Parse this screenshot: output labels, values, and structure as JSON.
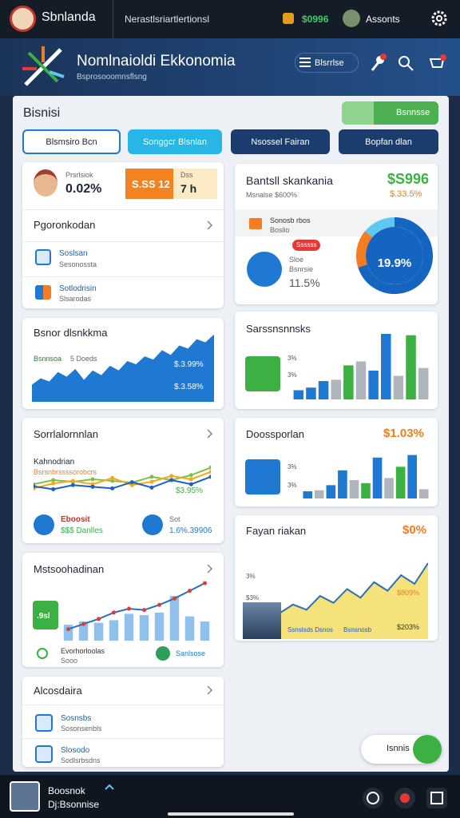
{
  "topbar": {
    "app_name": "Sbnlanda",
    "subtitle": "Nerastlsriartlertionsl",
    "balance": "$0996",
    "account": "Assonts"
  },
  "header": {
    "title": "Nomlnaioldi Ekkonomia",
    "subtitle": "Bsprosooomnsflsng",
    "search": "Blsrrlse"
  },
  "section": {
    "title": "Bisnisi",
    "button": "Bsnnsse"
  },
  "tabs": [
    "Blsmsiro Bcn",
    "Songgcr Blsnlan",
    "Nsossel Fairan",
    "Bopfan dlan"
  ],
  "profile_card": {
    "label": "Prsrlsiok",
    "value": "0.02%",
    "badge": "S.SS 12",
    "badge_label": "Dss",
    "badge_value": "7 h",
    "list_title": "Pgoronkodan",
    "items": [
      {
        "title": "Soslsan",
        "sub": "Sesonossta"
      },
      {
        "title": "Sotlodrisin",
        "sub": "Slsarodas"
      }
    ]
  },
  "area_card": {
    "title": "Bsnor dlsnkkma",
    "legend": "Bsnnsoa",
    "legend2": "5 Doeds",
    "label1": "$.3.99%",
    "label2": "$.3.58%",
    "chart": {
      "type": "area",
      "color": "#1f78d1",
      "ylim": [
        0,
        100
      ],
      "values": [
        22,
        30,
        26,
        38,
        32,
        42,
        28,
        40,
        34,
        46,
        40,
        52,
        48,
        58,
        54,
        66,
        60,
        72,
        68,
        80,
        76,
        86
      ]
    }
  },
  "line_card": {
    "title": "Sorrlalornnlan",
    "label": "Kahnodrian",
    "sublabel": "Bsrsnbrssssorobcrs",
    "value": "$3.95%",
    "left_title": "Eboosit",
    "left_value": "$$$ Danlles",
    "right_title": "Sot",
    "right_value": "1.6%.39906",
    "chart": {
      "type": "line",
      "ylim": [
        0,
        100
      ],
      "series": [
        {
          "color": "#7cc242",
          "values": [
            40,
            50,
            46,
            52,
            48,
            44,
            58,
            50,
            62,
            80
          ]
        },
        {
          "color": "#f5a623",
          "values": [
            30,
            42,
            48,
            40,
            55,
            38,
            46,
            60,
            52,
            70
          ]
        },
        {
          "color": "#1f5fbf",
          "values": [
            35,
            28,
            38,
            34,
            30,
            45,
            32,
            50,
            40,
            58
          ]
        }
      ]
    }
  },
  "barline_card": {
    "title": "Mstsoohadinan",
    "badge": ".9sl",
    "left_title": "Evorhorloolas",
    "left_sub": "Sooo",
    "right_title": "Sanlsose",
    "chart": {
      "type": "bar_line",
      "ylim": [
        0,
        100
      ],
      "bar_color": "#8fc1ec",
      "line_color": "#2c6fb7",
      "values": [
        25,
        30,
        28,
        32,
        42,
        40,
        44,
        70,
        38,
        30
      ],
      "line": [
        18,
        26,
        34,
        44,
        50,
        48,
        56,
        66,
        78,
        90
      ]
    }
  },
  "list_card": {
    "title": "Alcosdaira",
    "items": [
      {
        "title": "Sosnsbs",
        "sub": "Sosonsenbls"
      },
      {
        "title": "Slosodo",
        "sub": "Sodlsrbsdns"
      }
    ]
  },
  "stat_card": {
    "title": "Bantsll skankania",
    "value": "$S996",
    "sub": "Msnalse $600%",
    "change": "$.33.5%",
    "row_title": "Sonosb rbos",
    "row_sub": "Boslio",
    "pill": "Ssssss",
    "item_title": "Sloe",
    "item_sub": "Bsnrsie",
    "item_value": "11.5%",
    "donut_label": "19.9%",
    "chart": {
      "type": "donut",
      "segments": [
        {
          "value": 70,
          "color": "#1565c0"
        },
        {
          "value": 16,
          "color": "#f57c20"
        },
        {
          "value": 14,
          "color": "#5ec8f0"
        }
      ]
    }
  },
  "bars_card": {
    "title": "Sarssnsnnsks",
    "axis_labels": [
      "3%",
      "3%"
    ],
    "chart": {
      "type": "bar",
      "ylim": [
        0,
        100
      ],
      "values": [
        14,
        18,
        28,
        30,
        52,
        58,
        44,
        100,
        36,
        98,
        48
      ],
      "colors": [
        "#1f78d1",
        "#1f78d1",
        "#1f78d1",
        "#b0b5bd",
        "#3cb043",
        "#b0b5bd",
        "#1f78d1",
        "#1f78d1",
        "#b0b5bd",
        "#3cb043",
        "#b0b5bd"
      ]
    }
  },
  "bars2_card": {
    "title": "Doossporlan",
    "value": "$1.03%",
    "axis_labels": [
      "3%",
      "3%"
    ],
    "chart": {
      "type": "bar",
      "ylim": [
        0,
        100
      ],
      "values": [
        14,
        16,
        26,
        55,
        36,
        30,
        80,
        40,
        62,
        85,
        18
      ],
      "colors": [
        "#1f78d1",
        "#b0b5bd",
        "#1f78d1",
        "#1f78d1",
        "#b0b5bd",
        "#3cb043",
        "#1f78d1",
        "#b0b5bd",
        "#3cb043",
        "#1f78d1",
        "#b0b5bd"
      ]
    }
  },
  "yellow_card": {
    "title": "Fayan riakan",
    "value": "$0%",
    "axis_labels": [
      "3%",
      "$3%"
    ],
    "label1": "$809%",
    "label2": "$203%",
    "footer1": "Ssnslsds Dsnos",
    "footer2": "Bsnsnosb",
    "chart": {
      "type": "area",
      "color": "#f6e27a",
      "line": "#2c6fb7",
      "ylim": [
        0,
        100
      ],
      "values": [
        30,
        40,
        34,
        50,
        42,
        58,
        48,
        66,
        56,
        74,
        64,
        88
      ]
    }
  },
  "float_button": "Isnnis",
  "bottombar": {
    "title": "Boosnok",
    "subtitle": "Dj:Bsonnise"
  }
}
